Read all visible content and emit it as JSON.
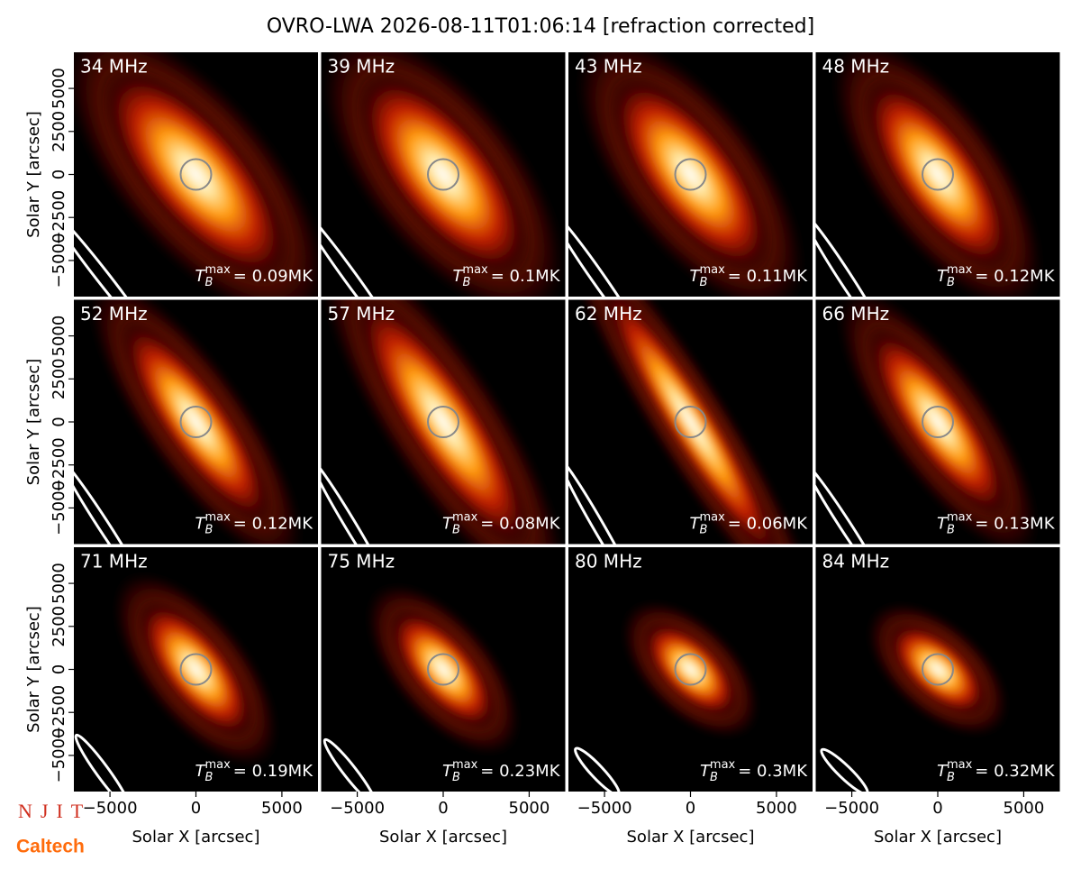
{
  "title": "OVRO-LWA 2026-08-11T01:06:14 [refraction corrected]",
  "axes": {
    "xlabel": "Solar X [arcsec]",
    "ylabel": "Solar Y [arcsec]",
    "xlim": [
      -7100,
      7100
    ],
    "ylim": [
      -7100,
      7100
    ],
    "xticks": [
      {
        "value": -5000,
        "label": "−5000"
      },
      0,
      5000
    ],
    "yticks": [
      {
        "value": -5000,
        "label": "−5000"
      },
      {
        "value": -2500,
        "label": "−2500"
      },
      0,
      2500,
      5000
    ],
    "tb_symbol": "T",
    "tb_sub": "B",
    "tb_sup": "max"
  },
  "chart_data": [
    {
      "type": "image",
      "label": "34 MHz",
      "annotation": "= 0.09MK"
    },
    {
      "type": "image",
      "label": "39 MHz",
      "annotation": "= 0.1MK"
    },
    {
      "type": "image",
      "label": "43 MHz",
      "annotation": "= 0.11MK"
    },
    {
      "type": "image",
      "label": "48 MHz",
      "annotation": "= 0.12MK"
    },
    {
      "type": "image",
      "label": "52 MHz",
      "annotation": "= 0.12MK"
    },
    {
      "type": "image",
      "label": "57 MHz",
      "annotation": "= 0.08MK"
    },
    {
      "type": "image",
      "label": "62 MHz",
      "annotation": "= 0.06MK"
    },
    {
      "type": "image",
      "label": "66 MHz",
      "annotation": "= 0.13MK"
    },
    {
      "type": "image",
      "label": "71 MHz",
      "annotation": "= 0.19MK"
    },
    {
      "type": "image",
      "label": "75 MHz",
      "annotation": "= 0.23MK"
    },
    {
      "type": "image",
      "label": "80 MHz",
      "annotation": "= 0.3MK"
    },
    {
      "type": "image",
      "label": "84 MHz",
      "annotation": "= 0.32MK"
    }
  ],
  "logos": {
    "top": "NJIT",
    "bottom": "Caltech"
  }
}
